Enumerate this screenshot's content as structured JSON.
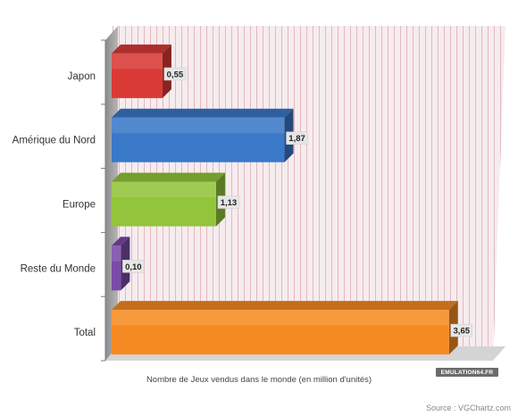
{
  "chart_data": {
    "type": "bar",
    "orientation": "horizontal",
    "categories": [
      "Japon",
      "Amérique du Nord",
      "Europe",
      "Reste du Monde",
      "Total"
    ],
    "values": [
      0.55,
      1.87,
      1.13,
      0.1,
      3.65
    ],
    "value_labels": [
      "0,55",
      "1,87",
      "1,13",
      "0,10",
      "3,65"
    ],
    "colors": [
      "#d93a36",
      "#3a78c8",
      "#92c43c",
      "#7a4aa8",
      "#f58a22"
    ],
    "xlabel": "Nombre de Jeux vendus dans le monde (en million d'unités)",
    "ylabel": "",
    "xlim": [
      0,
      4.0
    ],
    "grid": "vertical",
    "legend": "none"
  },
  "source": "Source : VGChartz.com",
  "logo_text": "EMULATION64.FR"
}
